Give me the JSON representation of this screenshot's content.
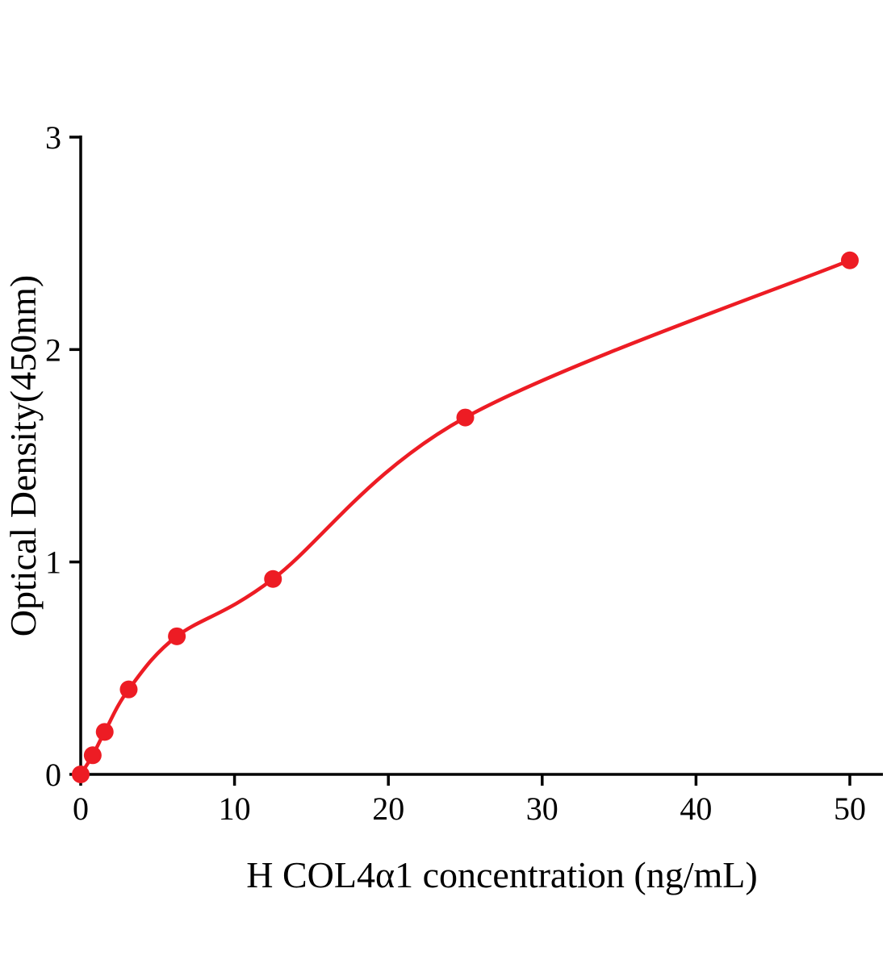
{
  "chart_data": {
    "type": "scatter",
    "title": "",
    "xlabel": "H COL4α1 concentration (ng/mL)",
    "ylabel": "Optical Density(450nm)",
    "x": [
      0,
      0.78,
      1.56,
      3.12,
      6.25,
      12.5,
      25,
      50
    ],
    "y": [
      0,
      0.09,
      0.2,
      0.4,
      0.65,
      0.92,
      1.68,
      2.42
    ],
    "x_ticks": [
      0,
      10,
      20,
      30,
      40,
      50
    ],
    "y_ticks": [
      0,
      1,
      2,
      3
    ],
    "xlim": [
      0,
      52
    ],
    "ylim": [
      0,
      3
    ],
    "curve": "smooth-fit-through-points",
    "grid": "off",
    "legend": "none",
    "point_color": "#ed1c24",
    "line_color": "#ed1c24",
    "axis_color": "#000000"
  }
}
